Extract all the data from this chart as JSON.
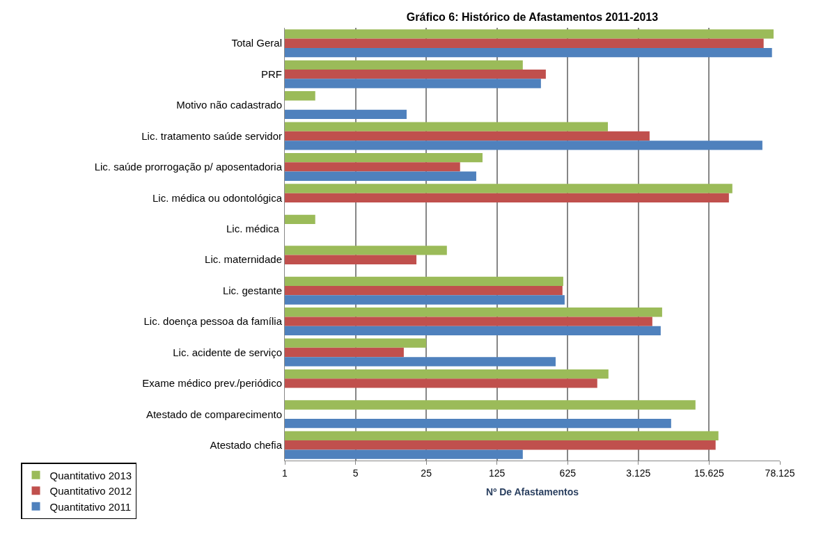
{
  "chart_data": {
    "type": "bar",
    "orientation": "horizontal",
    "title": "Gráfico 6: Histórico de Afastamentos 2011-2013",
    "xlabel": "Nº De Afastamentos",
    "categories": [
      "Total Geral",
      "PRF",
      "Motivo não cadastrado",
      "Lic. tratamento saúde servidor",
      "Lic. saúde prorrogação p/ aposentadoria",
      "Lic. médica ou odontológica",
      "Lic. médica ",
      "Lic. maternidade",
      "Lic. gestante",
      "Lic. doença pessoa da família",
      "Lic. acidente de serviço",
      "Exame médico prev./periódico",
      "Atestado de comparecimento",
      "Atestado chefia"
    ],
    "series": [
      {
        "name": "Quantitativo 2013",
        "color": "#9bbb59",
        "values": [
          67700,
          225,
          2,
          1560,
          90,
          26500,
          2,
          40,
          565,
          5360,
          25,
          1580,
          11450,
          19300
        ]
      },
      {
        "name": "Quantitativo 2012",
        "color": "#c0504d",
        "values": [
          54000,
          380,
          null,
          4030,
          54,
          24500,
          null,
          20,
          555,
          4290,
          15,
          1225,
          null,
          18100
        ]
      },
      {
        "name": "Quantitativo 2011",
        "color": "#4f81bd",
        "values": [
          65300,
          340,
          16,
          52500,
          78,
          null,
          null,
          null,
          583,
          5190,
          475,
          null,
          6580,
          225
        ]
      }
    ],
    "log": "x",
    "xlim": [
      1,
      78125
    ],
    "xticks": [
      1,
      5,
      25,
      125,
      625,
      {
        "value": 3125,
        "label": "3.125"
      },
      {
        "value": 15625,
        "label": "15.625"
      },
      {
        "value": 78125,
        "label": "78.125"
      }
    ],
    "grid": "x",
    "legend": "bottom left"
  }
}
